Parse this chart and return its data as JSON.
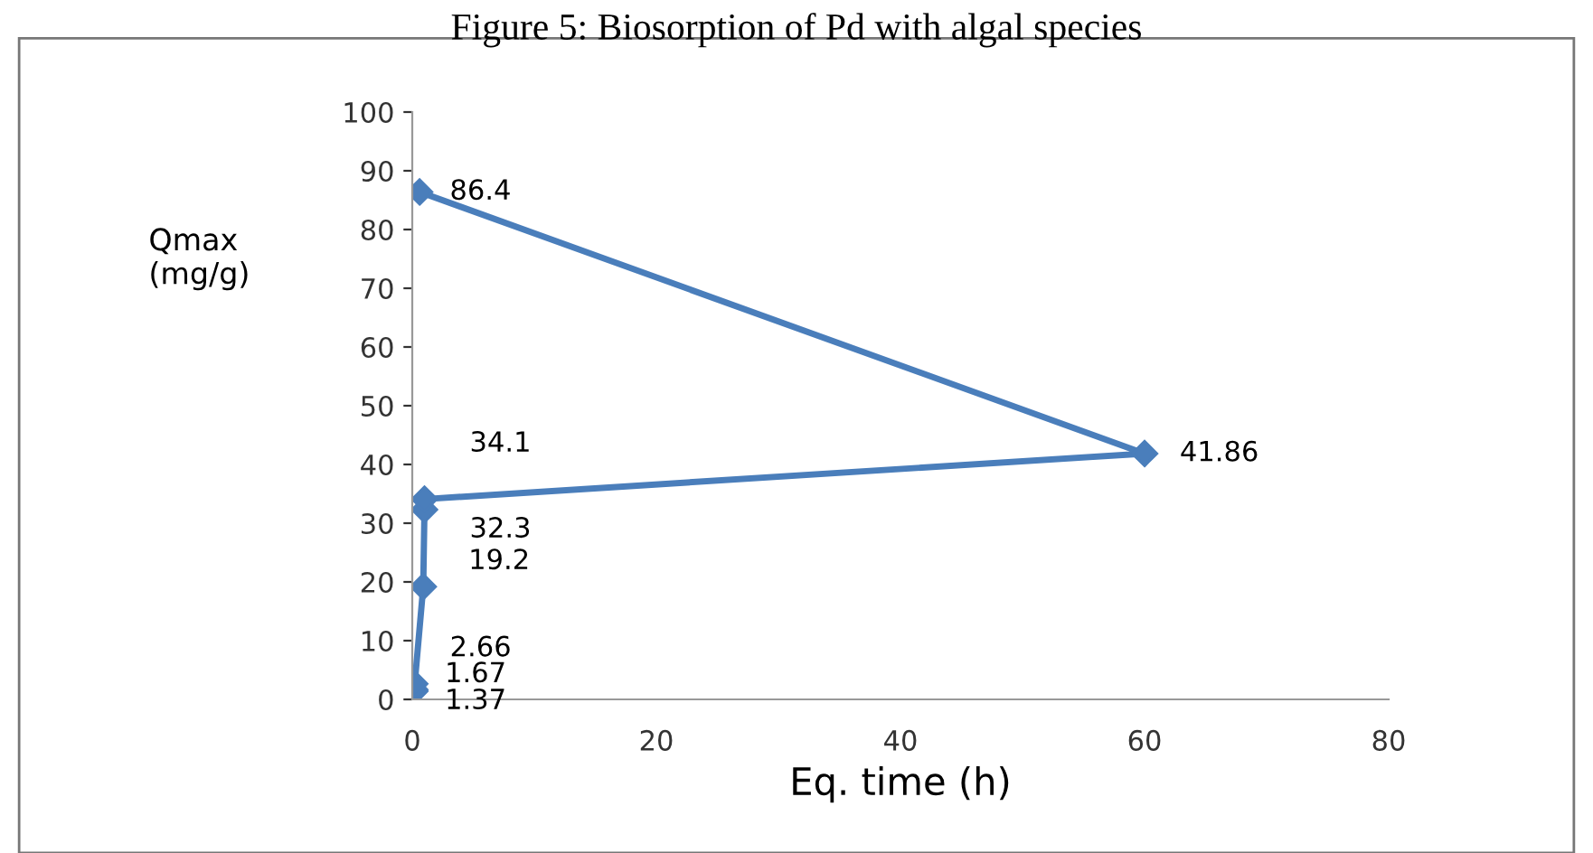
{
  "chart_data": {
    "type": "line",
    "title": "Figure 5: Biosorption of Pd with algal species",
    "xlabel": "Eq. time (h)",
    "ylabel": "Qmax\n(mg/g)",
    "x": [
      0.2,
      0.2,
      0.2,
      0.9,
      1,
      1,
      60,
      0.6
    ],
    "series": [
      {
        "color": "#4a7ebb",
        "values": [
          1.37,
          1.67,
          2.66,
          19.2,
          32.3,
          34.1,
          41.86,
          86.4
        ]
      }
    ],
    "data_labels": true,
    "marker": "diamond",
    "line_style": "solid",
    "grid": false,
    "legend": false,
    "xlim": [
      0,
      80
    ],
    "xticks": [
      0,
      20,
      40,
      60,
      80
    ],
    "ylim": [
      0,
      100
    ],
    "yticks": [
      0,
      10,
      20,
      30,
      40,
      50,
      60,
      70,
      80,
      90,
      100
    ]
  }
}
